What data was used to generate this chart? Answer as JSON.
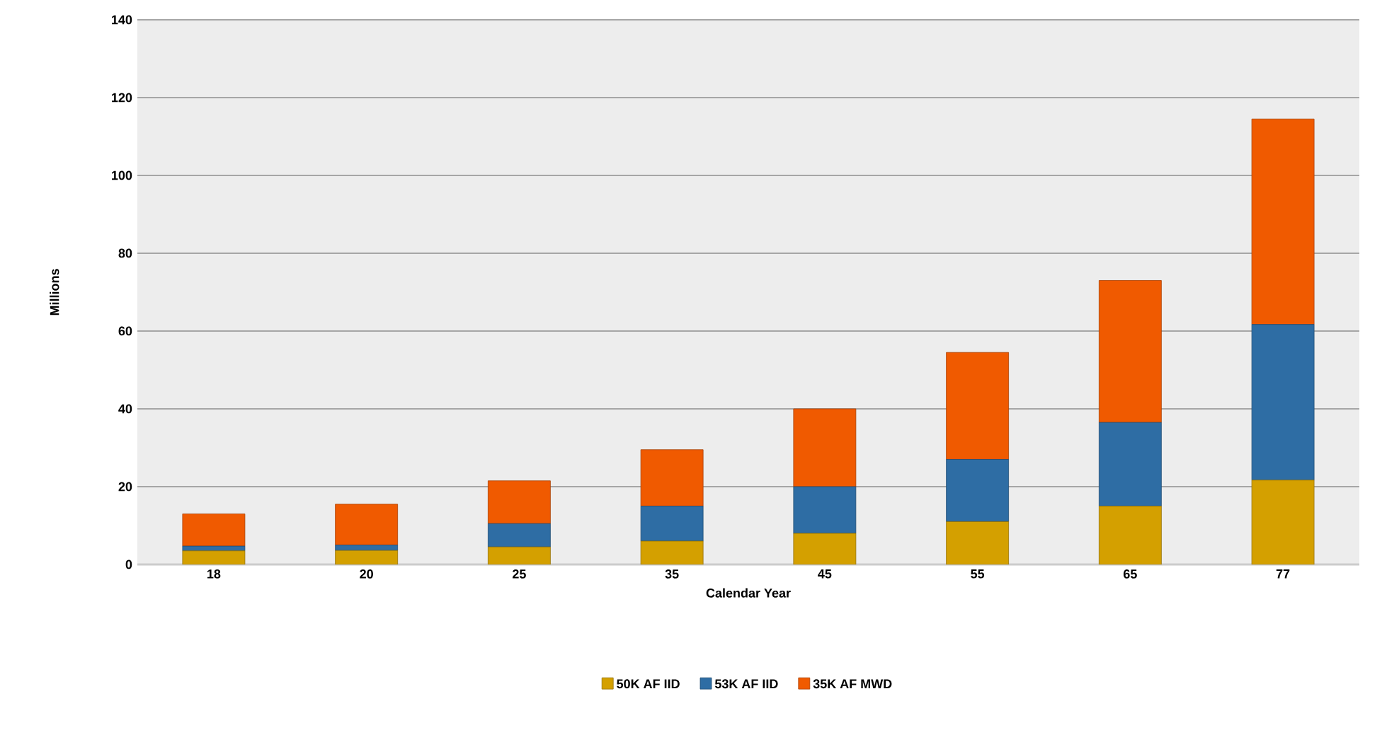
{
  "chart_data": {
    "type": "bar",
    "stacked": true,
    "xlabel": "Calendar Year",
    "ylabel": "Millions",
    "categories": [
      "18",
      "20",
      "25",
      "35",
      "45",
      "55",
      "65",
      "77"
    ],
    "series": [
      {
        "name": "50K AF IID",
        "color": "#d4a000",
        "values": [
          3.5,
          3.6,
          4.5,
          6,
          8,
          11,
          15,
          21.7
        ]
      },
      {
        "name": "53K AF IID",
        "color": "#2e6da4",
        "values": [
          1.2,
          1.4,
          6,
          9,
          12,
          16,
          21.5,
          40
        ]
      },
      {
        "name": "35K AF MWD",
        "color": "#f05a00",
        "values": [
          8.3,
          10.5,
          11,
          14.5,
          20,
          27.5,
          36.5,
          52.8
        ]
      }
    ],
    "ylim": [
      0,
      140
    ],
    "yticks": [
      0,
      20,
      40,
      60,
      80,
      100,
      120,
      140
    ],
    "grid": "y",
    "legend": "bottom"
  }
}
